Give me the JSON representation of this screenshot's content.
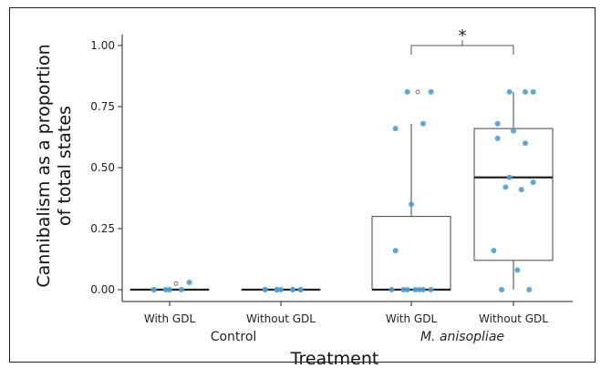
{
  "chart_data": {
    "type": "box",
    "ylabel_line1": "Cannibalism as a proportion",
    "ylabel_line2": "of total states",
    "xlabel": "Treatment",
    "ylim": [
      -0.05,
      1.08
    ],
    "yticks": [
      "0.00",
      "0.25",
      "0.50",
      "0.75",
      "1.00"
    ],
    "categories": [
      "With GDL",
      "Without GDL",
      "With GDL",
      "Without GDL"
    ],
    "groups": [
      {
        "label": "Control",
        "italic": false
      },
      {
        "label": "M. anisopliae",
        "italic": true
      }
    ],
    "significance": {
      "label": "*",
      "between": [
        2,
        3
      ],
      "y": 1.0
    },
    "boxes": [
      {
        "name": "Control With GDL",
        "q1": 0,
        "median": 0,
        "q3": 0,
        "whisker_low": 0,
        "whisker_high": 0,
        "outliers": [
          0.025
        ],
        "points": [
          0.03,
          0.0,
          0.0,
          0.0,
          0.0,
          0.0
        ]
      },
      {
        "name": "Control Without GDL",
        "q1": 0,
        "median": 0,
        "q3": 0,
        "whisker_low": 0,
        "whisker_high": 0,
        "outliers": [],
        "points": [
          0.0,
          0.0,
          0.0,
          0.0,
          0.0,
          0.0,
          0.0,
          0.0,
          0.0
        ]
      },
      {
        "name": "M. anisopliae With GDL",
        "q1": 0,
        "median": 0,
        "q3": 0.3,
        "whisker_low": 0,
        "whisker_high": 0.68,
        "outliers": [
          0.81
        ],
        "points": [
          0.81,
          0.81,
          0.68,
          0.66,
          0.35,
          0.16,
          0.0,
          0.0,
          0.0,
          0.0,
          0.0,
          0.0,
          0.0
        ]
      },
      {
        "name": "M. anisopliae Without GDL",
        "q1": 0.12,
        "median": 0.46,
        "q3": 0.66,
        "whisker_low": 0,
        "whisker_high": 0.81,
        "outliers": [],
        "points": [
          0.81,
          0.81,
          0.81,
          0.68,
          0.65,
          0.62,
          0.6,
          0.46,
          0.44,
          0.42,
          0.41,
          0.16,
          0.08,
          0.0,
          0.0
        ]
      }
    ],
    "colors": {
      "point": "#4a9fd4",
      "box": "#444444",
      "median": "#222222",
      "outlier": "#555555"
    }
  }
}
